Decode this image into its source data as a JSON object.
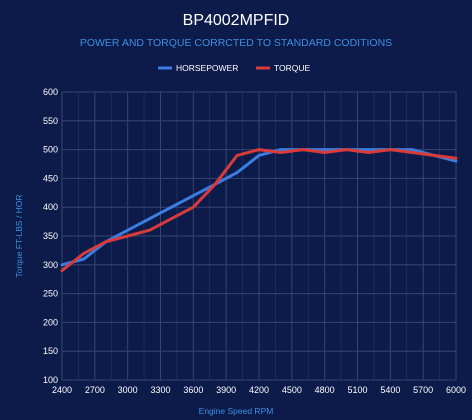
{
  "chart_data": {
    "type": "line",
    "title": "BP4002MPFID",
    "subtitle": "POWER AND TORQUE CORRCTED TO STANDARD CODITIONS",
    "xlabel": "Engine Speed RPM",
    "ylabel": "Torque FT-LBS / HOR",
    "xlim": [
      2400,
      6000
    ],
    "ylim": [
      100,
      600
    ],
    "x_ticks": [
      2400,
      2700,
      3000,
      3300,
      3600,
      3900,
      4200,
      4500,
      4800,
      5100,
      5400,
      5700,
      6000
    ],
    "y_ticks": [
      100,
      150,
      200,
      250,
      300,
      350,
      400,
      450,
      500,
      550,
      600
    ],
    "grid": true,
    "legend_position": "top",
    "series": [
      {
        "name": "HORSEPOWER",
        "color": "#3b7de0",
        "x": [
          2400,
          2600,
          2800,
          3000,
          3200,
          3400,
          3600,
          3800,
          4000,
          4200,
          4400,
          4600,
          4800,
          5000,
          5200,
          5400,
          5600,
          5800,
          6000
        ],
        "y": [
          300,
          310,
          340,
          360,
          380,
          400,
          420,
          440,
          460,
          490,
          500,
          500,
          500,
          500,
          500,
          500,
          500,
          490,
          480
        ]
      },
      {
        "name": "TORQUE",
        "color": "#d93a3a",
        "x": [
          2400,
          2600,
          2800,
          3000,
          3200,
          3400,
          3600,
          3800,
          4000,
          4200,
          4400,
          4600,
          4800,
          5000,
          5200,
          5400,
          5600,
          5800,
          6000
        ],
        "y": [
          290,
          320,
          340,
          350,
          360,
          380,
          400,
          440,
          490,
          500,
          495,
          500,
          495,
          500,
          495,
          500,
          495,
          490,
          485
        ]
      }
    ]
  }
}
